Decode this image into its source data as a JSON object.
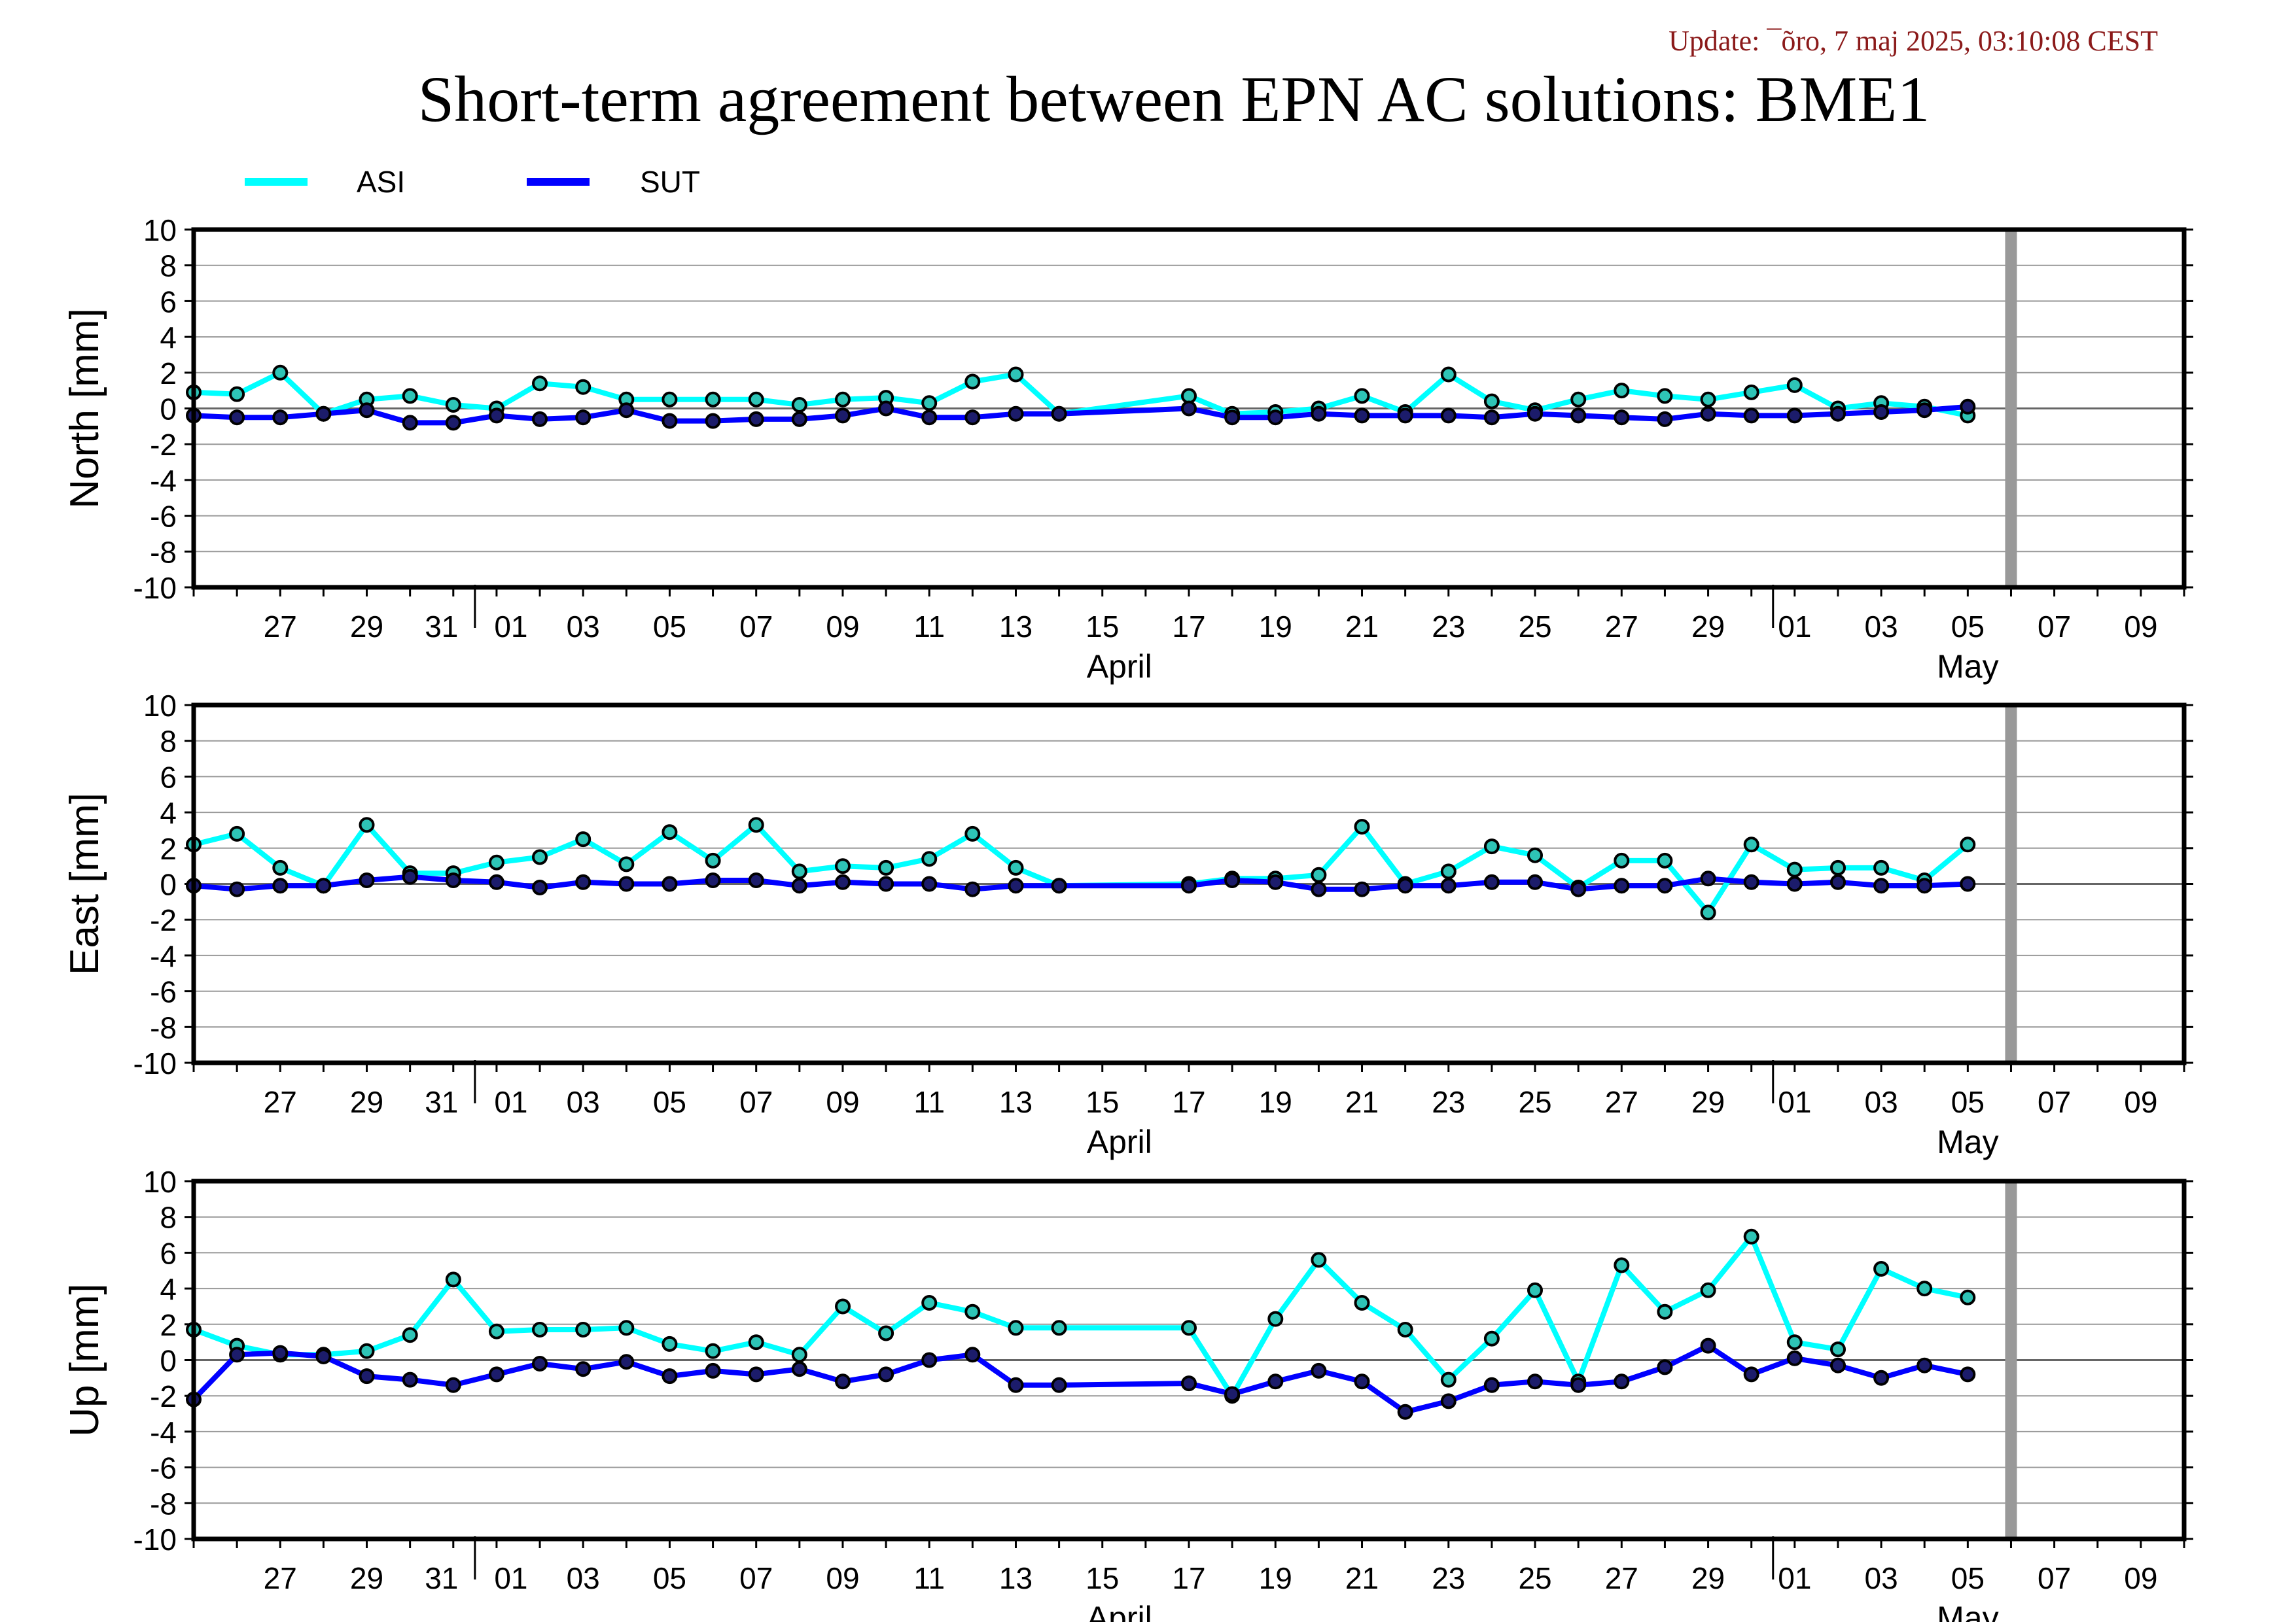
{
  "header": {
    "update": "Update: ¯õro, 7 maj 2025, 03:10:08 CEST",
    "title": "Short-term agreement between EPN AC solutions: BME1"
  },
  "legend": [
    {
      "name": "ASI",
      "color": "#00ffff"
    },
    {
      "name": "SUT",
      "color": "#0000ff"
    }
  ],
  "colors": {
    "asi": "#00ffff",
    "sut": "#0000ff",
    "marker_asi": "#2ec4b6",
    "marker_sut": "#1c1c6b",
    "today": "#999999"
  },
  "x_axis": {
    "tick_labels": [
      "27",
      "29",
      "31",
      "01",
      "03",
      "05",
      "07",
      "09",
      "11",
      "13",
      "15",
      "17",
      "19",
      "21",
      "23",
      "25",
      "27",
      "29",
      "01",
      "03",
      "05",
      "07",
      "09"
    ],
    "month_labels": [
      "April",
      "May"
    ]
  },
  "chart_data": [
    {
      "type": "line",
      "ylabel": "North [mm]",
      "ylim": [
        -10,
        10
      ],
      "yticks": [
        "10",
        "8",
        "6",
        "4",
        "2",
        "0",
        "-2",
        "-4",
        "-6",
        "-8",
        "-10"
      ],
      "xlim": [
        "2025-03-25",
        "2025-05-10"
      ],
      "today": "2025-05-06",
      "series": [
        {
          "name": "ASI",
          "x": [
            "2025-03-25",
            "2025-03-26",
            "2025-03-27",
            "2025-03-28",
            "2025-03-29",
            "2025-03-30",
            "2025-03-31",
            "2025-04-01",
            "2025-04-02",
            "2025-04-03",
            "2025-04-04",
            "2025-04-05",
            "2025-04-06",
            "2025-04-07",
            "2025-04-08",
            "2025-04-09",
            "2025-04-10",
            "2025-04-11",
            "2025-04-12",
            "2025-04-13",
            "2025-04-14",
            "2025-04-17",
            "2025-04-18",
            "2025-04-19",
            "2025-04-20",
            "2025-04-21",
            "2025-04-22",
            "2025-04-23",
            "2025-04-24",
            "2025-04-25",
            "2025-04-26",
            "2025-04-27",
            "2025-04-28",
            "2025-04-29",
            "2025-04-30",
            "2025-05-01",
            "2025-05-02",
            "2025-05-03",
            "2025-05-04",
            "2025-05-05"
          ],
          "values": [
            0.9,
            0.8,
            2.0,
            -0.3,
            0.5,
            0.7,
            0.2,
            0.0,
            1.4,
            1.2,
            0.5,
            0.5,
            0.5,
            0.5,
            0.2,
            0.5,
            0.6,
            0.3,
            1.5,
            1.9,
            -0.3,
            0.7,
            -0.3,
            -0.2,
            0.0,
            0.7,
            -0.2,
            1.9,
            0.4,
            -0.1,
            0.5,
            1.0,
            0.7,
            0.5,
            0.9,
            1.3,
            0.0,
            0.3,
            0.1,
            -0.4
          ]
        },
        {
          "name": "SUT",
          "x": [
            "2025-03-25",
            "2025-03-26",
            "2025-03-27",
            "2025-03-28",
            "2025-03-29",
            "2025-03-30",
            "2025-03-31",
            "2025-04-01",
            "2025-04-02",
            "2025-04-03",
            "2025-04-04",
            "2025-04-05",
            "2025-04-06",
            "2025-04-07",
            "2025-04-08",
            "2025-04-09",
            "2025-04-10",
            "2025-04-11",
            "2025-04-12",
            "2025-04-13",
            "2025-04-14",
            "2025-04-17",
            "2025-04-18",
            "2025-04-19",
            "2025-04-20",
            "2025-04-21",
            "2025-04-22",
            "2025-04-23",
            "2025-04-24",
            "2025-04-25",
            "2025-04-26",
            "2025-04-27",
            "2025-04-28",
            "2025-04-29",
            "2025-04-30",
            "2025-05-01",
            "2025-05-02",
            "2025-05-03",
            "2025-05-04",
            "2025-05-05"
          ],
          "values": [
            -0.4,
            -0.5,
            -0.5,
            -0.3,
            -0.1,
            -0.8,
            -0.8,
            -0.4,
            -0.6,
            -0.5,
            -0.1,
            -0.7,
            -0.7,
            -0.6,
            -0.6,
            -0.4,
            0.0,
            -0.5,
            -0.5,
            -0.3,
            -0.3,
            0.0,
            -0.5,
            -0.5,
            -0.3,
            -0.4,
            -0.4,
            -0.4,
            -0.5,
            -0.3,
            -0.4,
            -0.5,
            -0.6,
            -0.3,
            -0.4,
            -0.4,
            -0.3,
            -0.2,
            -0.1,
            0.1
          ]
        }
      ]
    },
    {
      "type": "line",
      "ylabel": "East [mm]",
      "ylim": [
        -10,
        10
      ],
      "yticks": [
        "10",
        "8",
        "6",
        "4",
        "2",
        "0",
        "-2",
        "-4",
        "-6",
        "-8",
        "-10"
      ],
      "xlim": [
        "2025-03-25",
        "2025-05-10"
      ],
      "today": "2025-05-06",
      "series": [
        {
          "name": "ASI",
          "x": [
            "2025-03-25",
            "2025-03-26",
            "2025-03-27",
            "2025-03-28",
            "2025-03-29",
            "2025-03-30",
            "2025-03-31",
            "2025-04-01",
            "2025-04-02",
            "2025-04-03",
            "2025-04-04",
            "2025-04-05",
            "2025-04-06",
            "2025-04-07",
            "2025-04-08",
            "2025-04-09",
            "2025-04-10",
            "2025-04-11",
            "2025-04-12",
            "2025-04-13",
            "2025-04-14",
            "2025-04-17",
            "2025-04-18",
            "2025-04-19",
            "2025-04-20",
            "2025-04-21",
            "2025-04-22",
            "2025-04-23",
            "2025-04-24",
            "2025-04-25",
            "2025-04-26",
            "2025-04-27",
            "2025-04-28",
            "2025-04-29",
            "2025-04-30",
            "2025-05-01",
            "2025-05-02",
            "2025-05-03",
            "2025-05-04",
            "2025-05-05"
          ],
          "values": [
            2.2,
            2.8,
            0.9,
            -0.1,
            3.3,
            0.6,
            0.6,
            1.2,
            1.5,
            2.5,
            1.1,
            2.9,
            1.3,
            3.3,
            0.7,
            1.0,
            0.9,
            1.4,
            2.8,
            0.9,
            -0.1,
            0.0,
            0.3,
            0.3,
            0.5,
            3.2,
            0.0,
            0.7,
            2.1,
            1.6,
            -0.2,
            1.3,
            1.3,
            -1.6,
            2.2,
            0.8,
            0.9,
            0.9,
            0.2,
            2.2
          ]
        },
        {
          "name": "SUT",
          "x": [
            "2025-03-25",
            "2025-03-26",
            "2025-03-27",
            "2025-03-28",
            "2025-03-29",
            "2025-03-30",
            "2025-03-31",
            "2025-04-01",
            "2025-04-02",
            "2025-04-03",
            "2025-04-04",
            "2025-04-05",
            "2025-04-06",
            "2025-04-07",
            "2025-04-08",
            "2025-04-09",
            "2025-04-10",
            "2025-04-11",
            "2025-04-12",
            "2025-04-13",
            "2025-04-14",
            "2025-04-17",
            "2025-04-18",
            "2025-04-19",
            "2025-04-20",
            "2025-04-21",
            "2025-04-22",
            "2025-04-23",
            "2025-04-24",
            "2025-04-25",
            "2025-04-26",
            "2025-04-27",
            "2025-04-28",
            "2025-04-29",
            "2025-04-30",
            "2025-05-01",
            "2025-05-02",
            "2025-05-03",
            "2025-05-04",
            "2025-05-05"
          ],
          "values": [
            -0.1,
            -0.3,
            -0.1,
            -0.1,
            0.2,
            0.4,
            0.2,
            0.1,
            -0.2,
            0.1,
            0.0,
            0.0,
            0.2,
            0.2,
            -0.1,
            0.1,
            0.0,
            0.0,
            -0.3,
            -0.1,
            -0.1,
            -0.1,
            0.2,
            0.1,
            -0.3,
            -0.3,
            -0.1,
            -0.1,
            0.1,
            0.1,
            -0.3,
            -0.1,
            -0.1,
            0.3,
            0.1,
            0.0,
            0.1,
            -0.1,
            -0.1,
            0.0
          ]
        }
      ]
    },
    {
      "type": "line",
      "ylabel": "Up [mm]",
      "ylim": [
        -10,
        10
      ],
      "yticks": [
        "10",
        "8",
        "6",
        "4",
        "2",
        "0",
        "-2",
        "-4",
        "-6",
        "-8",
        "-10"
      ],
      "xlim": [
        "2025-03-25",
        "2025-05-10"
      ],
      "today": "2025-05-06",
      "series": [
        {
          "name": "ASI",
          "x": [
            "2025-03-25",
            "2025-03-26",
            "2025-03-27",
            "2025-03-28",
            "2025-03-29",
            "2025-03-30",
            "2025-03-31",
            "2025-04-01",
            "2025-04-02",
            "2025-04-03",
            "2025-04-04",
            "2025-04-05",
            "2025-04-06",
            "2025-04-07",
            "2025-04-08",
            "2025-04-09",
            "2025-04-10",
            "2025-04-11",
            "2025-04-12",
            "2025-04-13",
            "2025-04-14",
            "2025-04-17",
            "2025-04-18",
            "2025-04-19",
            "2025-04-20",
            "2025-04-21",
            "2025-04-22",
            "2025-04-23",
            "2025-04-24",
            "2025-04-25",
            "2025-04-26",
            "2025-04-27",
            "2025-04-28",
            "2025-04-29",
            "2025-04-30",
            "2025-05-01",
            "2025-05-02",
            "2025-05-03",
            "2025-05-04",
            "2025-05-05"
          ],
          "values": [
            1.7,
            0.8,
            0.3,
            0.3,
            0.5,
            1.4,
            4.5,
            1.6,
            1.7,
            1.7,
            1.8,
            0.9,
            0.5,
            1.0,
            0.3,
            3.0,
            1.5,
            3.2,
            2.7,
            1.8,
            1.8,
            1.8,
            -2.0,
            2.3,
            5.6,
            3.2,
            1.7,
            -1.1,
            1.2,
            3.9,
            -1.2,
            5.3,
            2.7,
            3.9,
            6.9,
            1.0,
            0.6,
            5.1,
            4.0,
            3.5
          ]
        },
        {
          "name": "SUT",
          "x": [
            "2025-03-25",
            "2025-03-26",
            "2025-03-27",
            "2025-03-28",
            "2025-03-29",
            "2025-03-30",
            "2025-03-31",
            "2025-04-01",
            "2025-04-02",
            "2025-04-03",
            "2025-04-04",
            "2025-04-05",
            "2025-04-06",
            "2025-04-07",
            "2025-04-08",
            "2025-04-09",
            "2025-04-10",
            "2025-04-11",
            "2025-04-12",
            "2025-04-13",
            "2025-04-14",
            "2025-04-17",
            "2025-04-18",
            "2025-04-19",
            "2025-04-20",
            "2025-04-21",
            "2025-04-22",
            "2025-04-23",
            "2025-04-24",
            "2025-04-25",
            "2025-04-26",
            "2025-04-27",
            "2025-04-28",
            "2025-04-29",
            "2025-04-30",
            "2025-05-01",
            "2025-05-02",
            "2025-05-03",
            "2025-05-04",
            "2025-05-05"
          ],
          "values": [
            -2.2,
            0.3,
            0.4,
            0.2,
            -0.9,
            -1.1,
            -1.4,
            -0.8,
            -0.2,
            -0.5,
            -0.1,
            -0.9,
            -0.6,
            -0.8,
            -0.5,
            -1.2,
            -0.8,
            0.0,
            0.3,
            -1.4,
            -1.4,
            -1.3,
            -1.9,
            -1.2,
            -0.6,
            -1.2,
            -2.9,
            -2.3,
            -1.4,
            -1.2,
            -1.4,
            -1.2,
            -0.4,
            0.8,
            -0.8,
            0.1,
            -0.3,
            -1.0,
            -0.3,
            -0.8
          ]
        }
      ]
    }
  ]
}
